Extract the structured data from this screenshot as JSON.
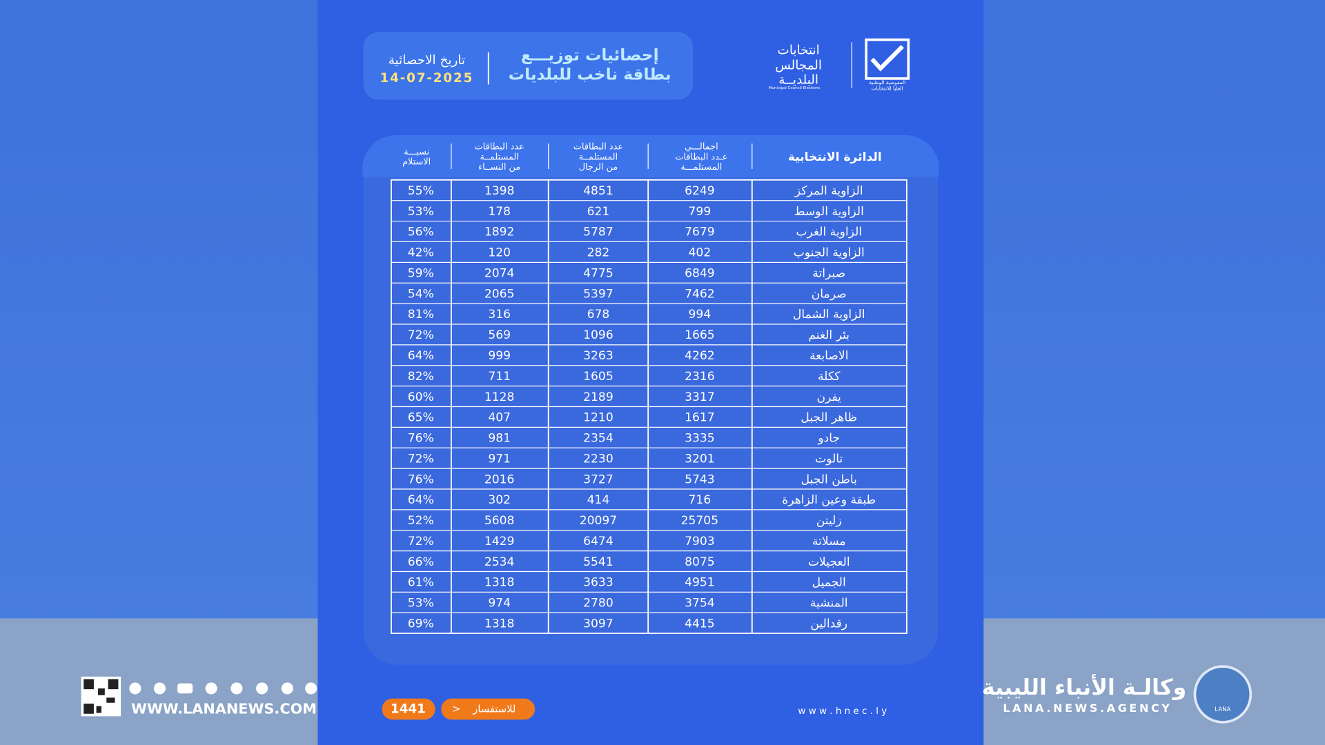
{
  "header": {
    "title_lines": [
      "إحصائيات توزيـــع",
      "بطاقة ناخب للبلديات"
    ],
    "date_label": "تاريخ الاحصائية",
    "date": "14-07-2025",
    "logo_lines": [
      "انتخابات",
      "المجالس",
      "البلديــة"
    ],
    "logo_caption": "Municipal Council Elections",
    "commission": [
      "المفوضية الوطنية",
      "العليا للانتخابات"
    ]
  },
  "table": {
    "headers": [
      [
        "الدائرة الانتخابية"
      ],
      [
        "اجمالـــي",
        "عـدد البطاقات",
        "المستلمـــة"
      ],
      [
        "عدد البطاقات",
        "المستلمــة",
        "من الرجال"
      ],
      [
        "عدد البطاقات",
        "المستلمــة",
        "من النســاء"
      ],
      [
        "نسبـــة",
        "الاستلام"
      ]
    ],
    "rows": [
      [
        "الزاوية المركز",
        "6249",
        "4851",
        "1398",
        "55%"
      ],
      [
        "الزاوية الوسط",
        "799",
        "621",
        "178",
        "53%"
      ],
      [
        "الزاوية الغرب",
        "7679",
        "5787",
        "1892",
        "56%"
      ],
      [
        "الزاوية الجنوب",
        "402",
        "282",
        "120",
        "42%"
      ],
      [
        "صبراتة",
        "6849",
        "4775",
        "2074",
        "59%"
      ],
      [
        "صرمان",
        "7462",
        "5397",
        "2065",
        "54%"
      ],
      [
        "الزاوية الشمال",
        "994",
        "678",
        "316",
        "81%"
      ],
      [
        "بئر الغنم",
        "1665",
        "1096",
        "569",
        "72%"
      ],
      [
        "الاصابعة",
        "4262",
        "3263",
        "999",
        "64%"
      ],
      [
        "ككلة",
        "2316",
        "1605",
        "711",
        "82%"
      ],
      [
        "يفرن",
        "3317",
        "2189",
        "1128",
        "60%"
      ],
      [
        "ظاهر الجبل",
        "1617",
        "1210",
        "407",
        "65%"
      ],
      [
        "جادو",
        "3335",
        "2354",
        "981",
        "76%"
      ],
      [
        "تالوت",
        "3201",
        "2230",
        "971",
        "72%"
      ],
      [
        "باطن الجبل",
        "5743",
        "3727",
        "2016",
        "76%"
      ],
      [
        "طبقة وعين الزاهرة",
        "716",
        "414",
        "302",
        "64%"
      ],
      [
        "زليتن",
        "25705",
        "20097",
        "5608",
        "52%"
      ],
      [
        "مسلاتة",
        "7903",
        "6474",
        "1429",
        "72%"
      ],
      [
        "العجيلات",
        "8075",
        "5541",
        "2534",
        "66%"
      ],
      [
        "الجميل",
        "4951",
        "3633",
        "1318",
        "61%"
      ],
      [
        "المنشية",
        "3754",
        "2780",
        "974",
        "53%"
      ],
      [
        "رقدالين",
        "4415",
        "3097",
        "1318",
        "69%"
      ]
    ]
  },
  "footer": {
    "website": "w w w . h n e c . l y",
    "inquiry": "للاستفسار",
    "phone": "1441",
    "lana_site": "WWW.LANANEWS.COM",
    "agency_ar": "وكالـة الأنباء الليبية",
    "agency_en": "LANA.NEWS.AGENCY",
    "agency_logo": "LANA"
  }
}
